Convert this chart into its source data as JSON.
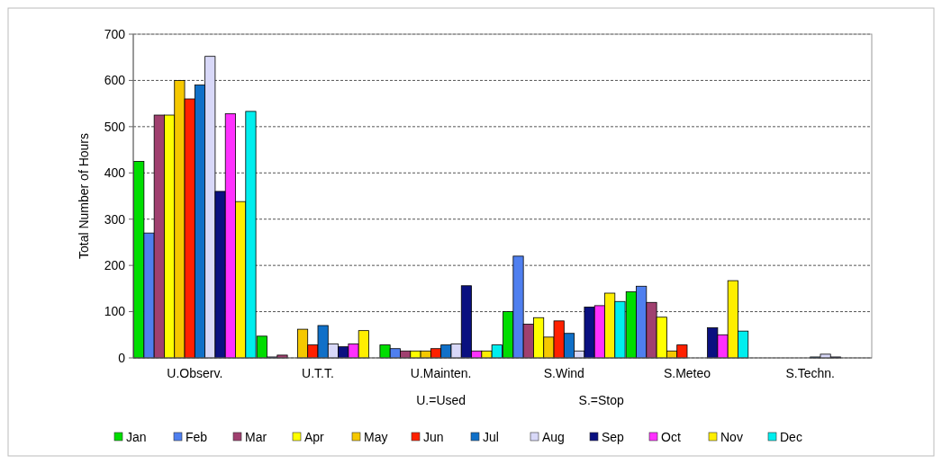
{
  "chart_data": {
    "type": "bar",
    "ylabel": "Total Number of Hours",
    "categories": [
      "U.Observ.",
      "U.T.T.",
      "U.Mainten.",
      "S.Wind",
      "S.Meteo",
      "S.Techn."
    ],
    "series": [
      {
        "name": "Jan",
        "color": "#00dd00",
        "values": [
          425,
          47,
          28,
          100,
          143,
          0
        ]
      },
      {
        "name": "Feb",
        "color": "#4f7fef",
        "values": [
          270,
          2,
          20,
          220,
          155,
          0
        ]
      },
      {
        "name": "Mar",
        "color": "#a0406f",
        "values": [
          525,
          6,
          15,
          73,
          120,
          0
        ]
      },
      {
        "name": "Apr",
        "color": "#ffff00",
        "values": [
          525,
          0,
          15,
          87,
          88,
          0
        ]
      },
      {
        "name": "May",
        "color": "#f5c800",
        "values": [
          600,
          62,
          15,
          45,
          15,
          0
        ]
      },
      {
        "name": "Jun",
        "color": "#ff2000",
        "values": [
          560,
          28,
          20,
          80,
          28,
          0
        ]
      },
      {
        "name": "Jul",
        "color": "#1070c8",
        "values": [
          590,
          70,
          28,
          53,
          0,
          2
        ]
      },
      {
        "name": "Aug",
        "color": "#d8d8f8",
        "values": [
          652,
          30,
          30,
          15,
          0,
          8
        ]
      },
      {
        "name": "Sep",
        "color": "#0a1080",
        "values": [
          360,
          24,
          156,
          110,
          65,
          2
        ]
      },
      {
        "name": "Oct",
        "color": "#ff30ff",
        "values": [
          528,
          30,
          15,
          113,
          50,
          0
        ]
      },
      {
        "name": "Nov",
        "color": "#ffee00",
        "values": [
          338,
          59,
          15,
          140,
          167,
          0
        ]
      },
      {
        "name": "Dec",
        "color": "#00eeee",
        "values": [
          533,
          null,
          28,
          122,
          58,
          0
        ]
      }
    ],
    "ylim": [
      0,
      700
    ],
    "yticks": [
      0,
      100,
      200,
      300,
      400,
      500,
      600,
      700
    ],
    "grid": "y",
    "legend": "bottom",
    "annotations": [
      "U.=Used",
      "S.=Stop"
    ]
  }
}
